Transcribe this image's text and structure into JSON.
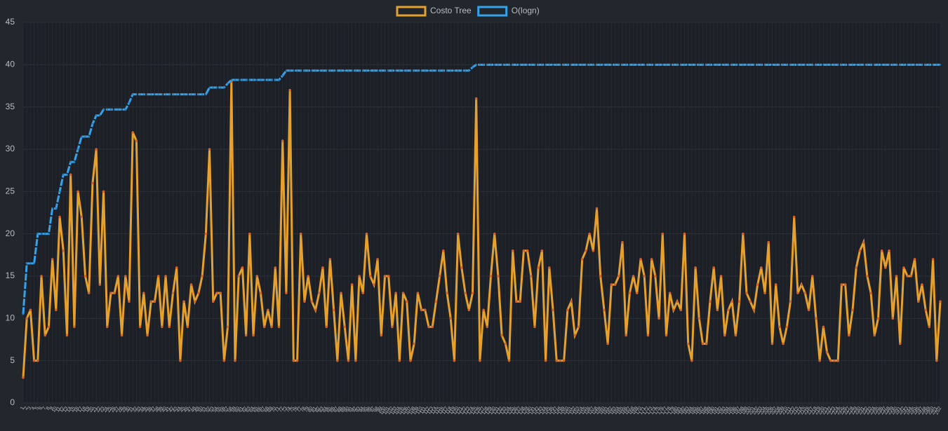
{
  "chart_data": {
    "type": "line",
    "categories": [
      "1",
      "2",
      "3",
      "4",
      "5",
      "6",
      "7",
      "8",
      "9",
      "10",
      "11",
      "12",
      "13",
      "14",
      "15",
      "16",
      "17",
      "18",
      "19",
      "20",
      "21",
      "22",
      "23",
      "24",
      "25",
      "26",
      "27",
      "28",
      "29",
      "30",
      "31",
      "32",
      "33",
      "34",
      "35",
      "36",
      "37",
      "38",
      "39",
      "40",
      "41",
      "42",
      "43",
      "44",
      "45",
      "46",
      "47",
      "48",
      "49",
      "50",
      "51",
      "52",
      "53",
      "54",
      "55",
      "56",
      "57",
      "58",
      "59",
      "60",
      "61",
      "62",
      "63",
      "64",
      "65",
      "66",
      "67",
      "68",
      "69",
      "70",
      "71",
      "72",
      "73",
      "74",
      "75",
      "76",
      "77",
      "78",
      "79",
      "80",
      "81",
      "82",
      "83",
      "84",
      "85",
      "86",
      "87",
      "88",
      "89",
      "90",
      "91",
      "92",
      "93",
      "94",
      "95",
      "96",
      "97",
      "98",
      "99",
      "100",
      "101",
      "102",
      "103",
      "104",
      "105",
      "106",
      "107",
      "108",
      "109",
      "110",
      "111",
      "112",
      "113",
      "114",
      "115",
      "116",
      "117",
      "118",
      "119",
      "120",
      "121",
      "122",
      "123",
      "124",
      "125",
      "126",
      "127",
      "128",
      "129",
      "130",
      "131",
      "132",
      "133",
      "134",
      "135",
      "136",
      "137",
      "138",
      "139",
      "140",
      "141",
      "142",
      "143",
      "144",
      "145",
      "146",
      "147",
      "148",
      "149",
      "150",
      "151",
      "152",
      "153",
      "154",
      "155",
      "156",
      "157",
      "158",
      "159",
      "160",
      "161",
      "162",
      "163",
      "164",
      "165",
      "166",
      "167",
      "168",
      "169",
      "170",
      "171",
      "172",
      "173",
      "174",
      "175",
      "176",
      "177",
      "178",
      "179",
      "180",
      "181",
      "182",
      "183",
      "184",
      "185",
      "186",
      "187",
      "188",
      "189",
      "190",
      "191",
      "192",
      "193",
      "194",
      "195",
      "196",
      "197",
      "198",
      "199",
      "200",
      "201",
      "202",
      "203",
      "204",
      "205",
      "206",
      "207",
      "208",
      "209",
      "210",
      "211",
      "212",
      "213",
      "214",
      "215",
      "216",
      "217",
      "218",
      "219",
      "220",
      "221",
      "222",
      "223",
      "224",
      "225",
      "226",
      "227",
      "228",
      "229",
      "230",
      "231",
      "232",
      "233",
      "234",
      "235",
      "236",
      "237",
      "238",
      "239",
      "240",
      "241",
      "242",
      "243",
      "244",
      "245",
      "246",
      "247",
      "248",
      "249",
      "250",
      "251",
      "252"
    ],
    "series": [
      {
        "name": "Costo Tree",
        "color": "#e5a02e",
        "point_color": "#d9622b",
        "values": [
          3,
          10,
          11,
          5,
          5,
          15,
          8,
          9,
          17,
          11,
          22,
          18,
          8,
          27,
          9,
          25,
          22,
          15,
          13,
          26,
          30,
          14,
          25,
          9,
          13,
          13,
          15,
          8,
          15,
          12,
          32,
          31,
          9,
          13,
          8,
          12,
          12,
          15,
          9,
          15,
          9,
          13,
          16,
          5,
          12,
          9,
          14,
          12,
          13,
          15,
          20,
          30,
          12,
          13,
          13,
          5,
          9,
          38,
          5,
          15,
          16,
          8,
          20,
          8,
          15,
          13,
          9,
          11,
          9,
          16,
          9,
          31,
          13,
          37,
          5,
          5,
          20,
          12,
          15,
          12,
          11,
          13,
          16,
          9,
          17,
          11,
          5,
          13,
          9,
          5,
          14,
          5,
          15,
          13,
          20,
          15,
          14,
          17,
          8,
          15,
          15,
          9,
          13,
          5,
          13,
          12,
          5,
          7,
          13,
          11,
          11,
          9,
          9,
          12,
          15,
          18,
          13,
          10,
          5,
          20,
          16,
          13,
          11,
          13,
          36,
          5,
          11,
          9,
          15,
          20,
          15,
          8,
          7,
          5,
          18,
          12,
          12,
          18,
          18,
          15,
          9,
          16,
          18,
          5,
          16,
          11,
          5,
          5,
          5,
          11,
          12,
          8,
          9,
          17,
          18,
          20,
          18,
          23,
          15,
          11,
          7,
          14,
          14,
          15,
          19,
          8,
          13,
          15,
          13,
          17,
          15,
          8,
          17,
          15,
          10,
          20,
          8,
          13,
          11,
          12,
          11,
          20,
          7,
          5,
          16,
          10,
          7,
          7,
          12,
          16,
          11,
          15,
          8,
          11,
          12,
          8,
          12,
          20,
          13,
          12,
          11,
          14,
          16,
          13,
          19,
          7,
          14,
          9,
          7,
          9,
          12,
          22,
          13,
          14,
          13,
          11,
          15,
          10,
          5,
          9,
          6,
          5,
          5,
          5,
          14,
          14,
          8,
          11,
          16,
          18,
          19,
          15,
          13,
          8,
          10,
          18,
          16,
          18,
          10,
          15,
          7,
          16,
          15,
          15,
          17,
          12,
          14,
          11,
          9,
          17,
          5,
          12
        ]
      },
      {
        "name": "O(logn)",
        "color": "#36a2eb",
        "point_color": "#2a7fb8",
        "values": [
          10.5,
          16.5,
          16.5,
          16.5,
          20,
          20,
          20,
          20,
          23,
          23,
          25,
          27,
          27,
          28.5,
          28.5,
          30,
          31.5,
          31.5,
          31.5,
          33,
          34,
          34,
          34.7,
          34.7,
          34.7,
          34.7,
          34.7,
          34.7,
          34.7,
          35.5,
          36.5,
          36.5,
          36.5,
          36.5,
          36.5,
          36.5,
          36.5,
          36.5,
          36.5,
          36.5,
          36.5,
          36.5,
          36.5,
          36.5,
          36.5,
          36.5,
          36.5,
          36.5,
          36.5,
          36.5,
          36.5,
          37.3,
          37.3,
          37.3,
          37.3,
          37.3,
          37.8,
          38.2,
          38.2,
          38.2,
          38.2,
          38.2,
          38.2,
          38.2,
          38.2,
          38.2,
          38.2,
          38.2,
          38.2,
          38.2,
          38.2,
          38.7,
          39.3,
          39.3,
          39.3,
          39.3,
          39.3,
          39.3,
          39.3,
          39.3,
          39.3,
          39.3,
          39.3,
          39.3,
          39.3,
          39.3,
          39.3,
          39.3,
          39.3,
          39.3,
          39.3,
          39.3,
          39.3,
          39.3,
          39.3,
          39.3,
          39.3,
          39.3,
          39.3,
          39.3,
          39.3,
          39.3,
          39.3,
          39.3,
          39.3,
          39.3,
          39.3,
          39.3,
          39.3,
          39.3,
          39.3,
          39.3,
          39.3,
          39.3,
          39.3,
          39.3,
          39.3,
          39.3,
          39.3,
          39.3,
          39.3,
          39.3,
          39.3,
          39.7,
          40,
          40,
          40,
          40,
          40,
          40,
          40,
          40,
          40,
          40,
          40,
          40,
          40,
          40,
          40,
          40,
          40,
          40,
          40,
          40,
          40,
          40,
          40,
          40,
          40,
          40,
          40,
          40,
          40,
          40,
          40,
          40,
          40,
          40,
          40,
          40,
          40,
          40,
          40,
          40,
          40,
          40,
          40,
          40,
          40,
          40,
          40,
          40,
          40,
          40,
          40,
          40,
          40,
          40,
          40,
          40,
          40,
          40,
          40,
          40,
          40,
          40,
          40,
          40,
          40,
          40,
          40,
          40,
          40,
          40,
          40,
          40,
          40,
          40,
          40,
          40,
          40,
          40,
          40,
          40,
          40,
          40,
          40,
          40,
          40,
          40,
          40,
          40,
          40,
          40,
          40,
          40,
          40,
          40,
          40,
          40,
          40,
          40,
          40,
          40,
          40,
          40,
          40,
          40,
          40,
          40,
          40,
          40,
          40,
          40,
          40,
          40,
          40,
          40,
          40,
          40,
          40,
          40,
          40,
          40,
          40,
          40,
          40,
          40,
          40,
          40,
          40,
          40
        ]
      }
    ],
    "ylim": [
      0,
      45
    ],
    "yticks": [
      0,
      5,
      10,
      15,
      20,
      25,
      30,
      35,
      40,
      45
    ],
    "grid": true
  }
}
